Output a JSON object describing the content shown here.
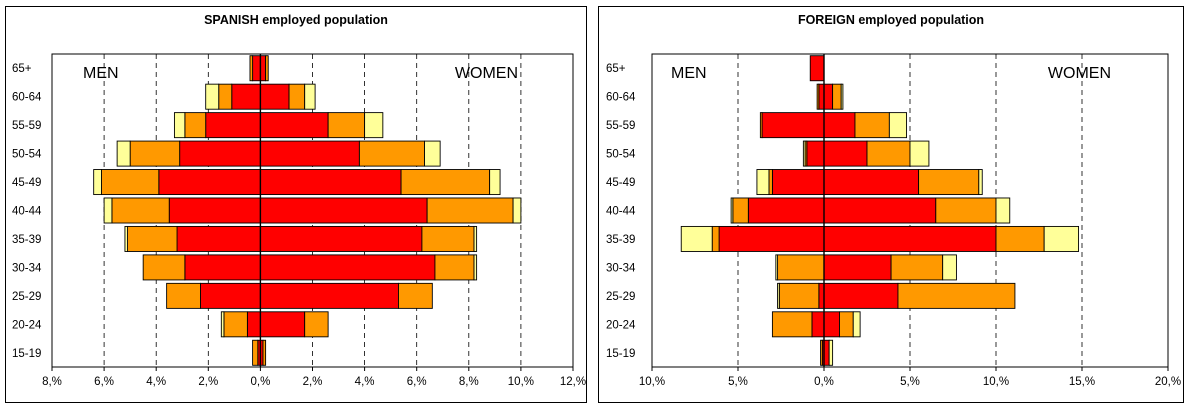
{
  "colors": {
    "red": "#ff0000",
    "orange": "#ff9900",
    "yellow": "#ffff99",
    "outline": "#000000",
    "grid": "#000000"
  },
  "chart_data": [
    {
      "type": "bar",
      "subtype": "population-pyramid-stacked",
      "title": "SPANISH employed population",
      "categories": [
        "65+",
        "60-64",
        "55-59",
        "50-54",
        "45-49",
        "40-44",
        "35-39",
        "30-34",
        "25-29",
        "20-24",
        "15-19"
      ],
      "xlim": [
        -8,
        12
      ],
      "xticks": [
        -8,
        -6,
        -4,
        -2,
        0,
        2,
        4,
        6,
        8,
        10,
        12
      ],
      "tick_labels": [
        "8,%",
        "6,%",
        "4,%",
        "2,%",
        "0,%",
        "2,%",
        "4,%",
        "6,%",
        "8,%",
        "10,%",
        "12,%"
      ],
      "grid": "vertical-dashed",
      "side_labels": {
        "left": "MEN",
        "right": "WOMEN"
      },
      "series": [
        {
          "color": "red",
          "men": [
            0.3,
            1.1,
            2.1,
            3.1,
            3.9,
            3.5,
            3.2,
            2.9,
            2.3,
            0.5,
            0.1
          ],
          "women": [
            0.2,
            1.1,
            2.6,
            3.8,
            5.4,
            6.4,
            6.2,
            6.7,
            5.3,
            1.7,
            0.1
          ]
        },
        {
          "color": "orange",
          "men": [
            0.1,
            0.5,
            0.8,
            1.9,
            2.2,
            2.2,
            1.9,
            1.6,
            1.3,
            0.9,
            0.2
          ],
          "women": [
            0.1,
            0.6,
            1.4,
            2.5,
            3.4,
            3.3,
            2.0,
            1.5,
            1.3,
            0.9,
            0.1
          ]
        },
        {
          "color": "yellow",
          "men": [
            0.0,
            0.5,
            0.4,
            0.5,
            0.3,
            0.3,
            0.1,
            0.0,
            0.0,
            0.1,
            0.0
          ],
          "women": [
            0.0,
            0.4,
            0.7,
            0.6,
            0.4,
            0.3,
            0.1,
            0.1,
            0.0,
            0.0,
            0.0
          ]
        }
      ]
    },
    {
      "type": "bar",
      "subtype": "population-pyramid-stacked",
      "title": "FOREIGN employed population",
      "categories": [
        "65+",
        "60-64",
        "55-59",
        "50-54",
        "45-49",
        "40-44",
        "35-39",
        "30-34",
        "25-29",
        "20-24",
        "15-19"
      ],
      "xlim": [
        -10,
        20
      ],
      "xticks": [
        -10,
        -5,
        0,
        5,
        10,
        15,
        20
      ],
      "tick_labels": [
        "10,%",
        "5,%",
        "0,%",
        "5,%",
        "10,%",
        "15,%",
        "20,%"
      ],
      "grid": "vertical-dashed",
      "side_labels": {
        "left": "MEN",
        "right": "WOMEN"
      },
      "series": [
        {
          "color": "red",
          "men": [
            0.8,
            0.3,
            3.6,
            1.0,
            3.0,
            4.4,
            6.1,
            0.0,
            0.3,
            0.7,
            0.1
          ],
          "women": [
            0.0,
            0.5,
            1.8,
            2.5,
            5.5,
            6.5,
            10.0,
            3.9,
            4.3,
            0.9,
            0.3
          ]
        },
        {
          "color": "orange",
          "men": [
            0.0,
            0.1,
            0.1,
            0.1,
            0.2,
            0.9,
            0.4,
            2.7,
            2.3,
            2.3,
            0.1
          ],
          "women": [
            0.0,
            0.5,
            2.0,
            2.5,
            3.5,
            3.5,
            2.8,
            3.0,
            6.8,
            0.8,
            0.0
          ]
        },
        {
          "color": "yellow",
          "men": [
            0.0,
            0.0,
            0.0,
            0.1,
            0.7,
            0.1,
            1.8,
            0.1,
            0.1,
            0.0,
            0.0
          ],
          "women": [
            0.0,
            0.1,
            1.0,
            1.1,
            0.2,
            0.8,
            2.0,
            0.8,
            0.0,
            0.4,
            0.2
          ]
        }
      ]
    }
  ]
}
